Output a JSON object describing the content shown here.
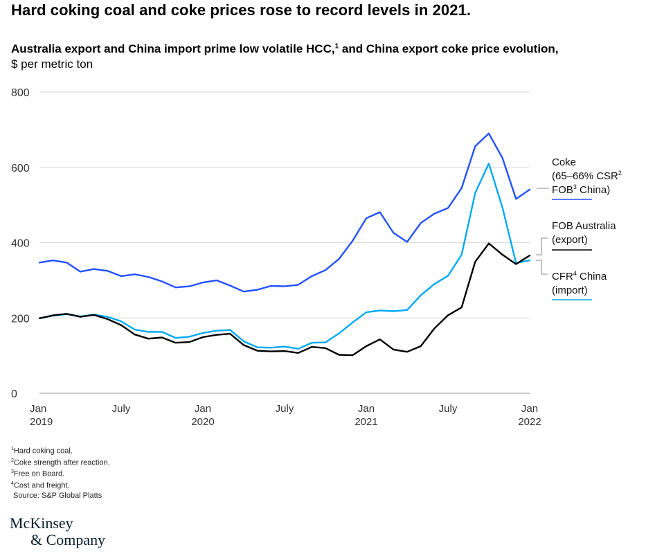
{
  "headline": "Hard coking coal and coke prices rose to record levels in 2021.",
  "subtitle": {
    "text": "Australia export and China import prime low volatile HCC,",
    "sup": "1",
    "tail": " and China export coke price evolution,"
  },
  "units": "$ per metric ton",
  "footnotes": {
    "f1": {
      "sup": "1",
      "text": "Hard coking coal."
    },
    "f2": {
      "sup": "2",
      "text": "Coke strength after reaction."
    },
    "f3": {
      "sup": "3",
      "text": "Free on Board."
    },
    "f4": {
      "sup": "4",
      "text": "Cost and freight."
    },
    "source": "Source: S&P Global Platts"
  },
  "logo": {
    "line1": "McKinsey",
    "line2": "& Company"
  },
  "chart_data": {
    "type": "line",
    "x": [
      "2019-01",
      "2019-02",
      "2019-03",
      "2019-04",
      "2019-05",
      "2019-06",
      "2019-07",
      "2019-08",
      "2019-09",
      "2019-10",
      "2019-11",
      "2019-12",
      "2020-01",
      "2020-02",
      "2020-03",
      "2020-04",
      "2020-05",
      "2020-06",
      "2020-07",
      "2020-08",
      "2020-09",
      "2020-10",
      "2020-11",
      "2020-12",
      "2021-01",
      "2021-02",
      "2021-03",
      "2021-04",
      "2021-05",
      "2021-06",
      "2021-07",
      "2021-08",
      "2021-09",
      "2021-10",
      "2021-11",
      "2021-12",
      "2022-01"
    ],
    "ylim": [
      0,
      800
    ],
    "yticks": [
      0,
      200,
      400,
      600,
      800
    ],
    "grid": true,
    "xticks": [
      {
        "x": "2019-01",
        "line1": "Jan",
        "line2": "2019"
      },
      {
        "x": "2019-07",
        "line1": "July",
        "line2": ""
      },
      {
        "x": "2020-01",
        "line1": "Jan",
        "line2": "2020"
      },
      {
        "x": "2020-07",
        "line1": "July",
        "line2": ""
      },
      {
        "x": "2021-01",
        "line1": "Jan",
        "line2": "2021"
      },
      {
        "x": "2021-07",
        "line1": "July",
        "line2": ""
      },
      {
        "x": "2022-01",
        "line1": "Jan",
        "line2": "2022"
      }
    ],
    "series": [
      {
        "key": "coke",
        "color": "#2251ff",
        "label_lines": [
          {
            "text": "Coke"
          },
          {
            "text": "(65–66% CSR",
            "sup": "2",
            "tail": ""
          },
          {
            "text": "FOB",
            "sup": "3",
            "tail": " China)"
          }
        ],
        "values": [
          347,
          353,
          347,
          323,
          330,
          325,
          311,
          316,
          309,
          297,
          281,
          284,
          294,
          300,
          286,
          270,
          275,
          285,
          284,
          288,
          311,
          327,
          357,
          405,
          465,
          481,
          426,
          402,
          452,
          477,
          492,
          545,
          656,
          690,
          625,
          516,
          541
        ]
      },
      {
        "key": "fob_australia",
        "color": "#000000",
        "label_lines": [
          {
            "text": "FOB Australia"
          },
          {
            "text": "(export)"
          }
        ],
        "values": [
          199,
          207,
          211,
          203,
          208,
          197,
          181,
          156,
          145,
          148,
          134,
          136,
          149,
          155,
          158,
          128,
          113,
          111,
          112,
          107,
          123,
          120,
          102,
          101,
          125,
          143,
          116,
          110,
          125,
          172,
          207,
          228,
          349,
          398,
          368,
          343,
          366
        ]
      },
      {
        "key": "cfr_china",
        "color": "#00a9f4",
        "label_lines": [
          {
            "text": "CFR",
            "sup": "4",
            "tail": " China"
          },
          {
            "text": "(import)"
          }
        ],
        "values": [
          199,
          206,
          210,
          204,
          209,
          203,
          191,
          169,
          163,
          163,
          147,
          150,
          160,
          166,
          168,
          138,
          122,
          121,
          124,
          118,
          134,
          135,
          159,
          188,
          215,
          220,
          218,
          221,
          260,
          290,
          312,
          368,
          532,
          610,
          493,
          346,
          353
        ]
      }
    ]
  }
}
